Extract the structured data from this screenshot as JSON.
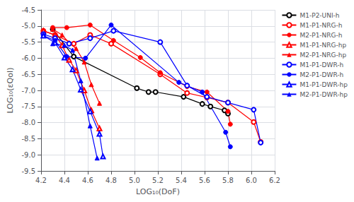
{
  "chart_data": {
    "type": "line",
    "xlabel": "LOG₁₀(DoF)",
    "ylabel": "LOG₁₀(εQoI)",
    "xlim": [
      4.2,
      6.2
    ],
    "ylim": [
      -9.5,
      -4.5
    ],
    "xticks": [
      4.2,
      4.4,
      4.6,
      4.8,
      {
        "value": 5.0,
        "label": "5.0"
      },
      5.2,
      5.4,
      5.6,
      5.8,
      {
        "value": 6.0,
        "label": "6.0"
      },
      6.2
    ],
    "yticks": [
      -9.5,
      {
        "value": -9.0,
        "label": "-9.0"
      },
      -8.5,
      {
        "value": -8.0,
        "label": "-8.0"
      },
      -7.5,
      {
        "value": -7.0,
        "label": "-7.0"
      },
      -6.5,
      {
        "value": -6.0,
        "label": "-6.0"
      },
      -5.5,
      {
        "value": -5.0,
        "label": "-5.0"
      },
      -4.5
    ],
    "grid": true,
    "legend": "upper right",
    "series": [
      {
        "name": "M1-P2-UNI-h",
        "color": "black",
        "marker": "open-circle",
        "line_style": "solid",
        "x": [
          4.3,
          4.48,
          5.02,
          5.12,
          5.18,
          5.42,
          5.58,
          5.65,
          5.77,
          5.8
        ],
        "values": [
          -5.1,
          -5.95,
          -6.93,
          -7.05,
          -7.05,
          -7.2,
          -7.42,
          -7.5,
          -7.62,
          -7.72
        ]
      },
      {
        "name": "M1-P1-NRG-h",
        "color": "red",
        "marker": "open-circle",
        "line_style": "solid",
        "x": [
          4.22,
          4.32,
          4.48,
          4.62,
          4.8,
          5.22,
          5.45,
          5.62,
          5.8,
          6.02,
          6.08
        ],
        "values": [
          -5.15,
          -5.28,
          -5.55,
          -5.28,
          -5.55,
          -6.5,
          -7.08,
          -7.22,
          -7.38,
          -7.98,
          -8.6
        ]
      },
      {
        "name": "M2-P1-NRG-h",
        "color": "red",
        "marker": "circle",
        "line_style": "solid",
        "x": [
          4.3,
          4.42,
          4.62,
          4.82,
          5.05,
          5.22,
          5.45,
          5.62,
          5.8,
          5.82
        ],
        "values": [
          -5.05,
          -5.05,
          -4.97,
          -5.45,
          -5.98,
          -6.45,
          -6.88,
          -7.05,
          -7.65,
          -8.05
        ]
      },
      {
        "name": "M1-P1-NRG-hp",
        "color": "red",
        "marker": "open-triangle",
        "line_style": "solid",
        "x": [
          4.22,
          4.32,
          4.38,
          4.44,
          4.5,
          4.57,
          4.63,
          4.7
        ],
        "values": [
          -5.15,
          -5.28,
          -5.6,
          -6.05,
          -6.38,
          -7.0,
          -7.62,
          -8.18
        ]
      },
      {
        "name": "M2-P1-NRG-hp",
        "color": "red",
        "marker": "triangle",
        "line_style": "solid",
        "x": [
          4.3,
          4.38,
          4.44,
          4.5,
          4.57,
          4.63,
          4.7
        ],
        "values": [
          -5.1,
          -5.28,
          -5.52,
          -5.7,
          -6.12,
          -6.82,
          -7.4
        ]
      },
      {
        "name": "M1-P1-DWR-h",
        "color": "blue",
        "marker": "open-circle",
        "line_style": "solid",
        "x": [
          4.22,
          4.32,
          4.44,
          4.62,
          4.82,
          5.22,
          5.45,
          5.62,
          5.8,
          6.02,
          6.08
        ],
        "values": [
          -5.25,
          -5.38,
          -5.55,
          -5.38,
          -5.15,
          -5.5,
          -6.85,
          -7.2,
          -7.38,
          -7.6,
          -8.62
        ]
      },
      {
        "name": "M2-P1-DWR-h",
        "color": "blue",
        "marker": "circle",
        "line_style": "solid",
        "x": [
          4.22,
          4.32,
          4.42,
          4.58,
          4.8,
          5.38,
          5.58,
          5.78,
          5.82
        ],
        "values": [
          -5.3,
          -5.45,
          -5.95,
          -6.0,
          -4.97,
          -6.75,
          -7.05,
          -8.3,
          -8.75
        ]
      },
      {
        "name": "M1-P1-DWR-hp",
        "color": "blue",
        "marker": "open-triangle",
        "line_style": "solid",
        "x": [
          4.22,
          4.32,
          4.4,
          4.47,
          4.54,
          4.62,
          4.7,
          4.73
        ],
        "values": [
          -5.3,
          -5.52,
          -5.98,
          -6.35,
          -6.98,
          -7.65,
          -8.35,
          -9.05
        ]
      },
      {
        "name": "M2-P1-DWR-hp",
        "color": "blue",
        "marker": "triangle",
        "line_style": "solid",
        "x": [
          4.3,
          4.4,
          4.47,
          4.54,
          4.62,
          4.68
        ],
        "values": [
          -5.55,
          -5.6,
          -5.75,
          -6.7,
          -8.1,
          -9.1
        ]
      }
    ]
  }
}
